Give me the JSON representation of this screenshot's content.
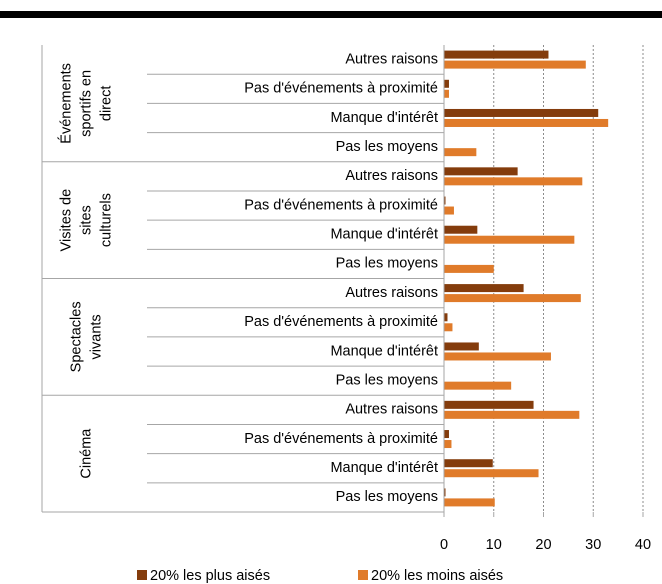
{
  "chart_data": {
    "type": "bar",
    "orientation": "horizontal",
    "groups": [
      {
        "label": [
          "Événements",
          "sportifs en",
          "direct"
        ]
      },
      {
        "label": [
          "Visites de",
          "sites",
          "culturels"
        ]
      },
      {
        "label": [
          "Spectacles",
          "vivants"
        ]
      },
      {
        "label": [
          "Cinéma"
        ]
      }
    ],
    "categories": [
      "Autres raisons",
      "Pas d'événements à proximité",
      "Manque d'intérêt",
      "Pas les moyens",
      "Autres raisons",
      "Pas d'événements à proximité",
      "Manque d'intérêt",
      "Pas les moyens",
      "Autres raisons",
      "Pas d'événements à proximité",
      "Manque d'intérêt",
      "Pas les moyens",
      "Autres raisons",
      "Pas d'événements à proximité",
      "Manque d'intérêt",
      "Pas les moyens"
    ],
    "series": [
      {
        "name": "20% les plus aisés",
        "color": "#843c0c",
        "values": [
          21,
          1,
          31,
          0,
          14.8,
          0.3,
          6.7,
          0,
          16,
          0.7,
          7,
          0,
          18,
          1,
          9.8,
          0.3
        ]
      },
      {
        "name": "20% les moins aisés",
        "color": "#e07b2a",
        "values": [
          28.5,
          1,
          33,
          6.5,
          27.8,
          2,
          26.2,
          10,
          27.5,
          1.7,
          21.5,
          13.5,
          27.2,
          1.5,
          19,
          10.2
        ]
      }
    ],
    "xlim": [
      0,
      40
    ],
    "xticks": [
      0,
      10,
      20,
      30,
      40
    ],
    "grid": true,
    "legend": "bottom"
  }
}
